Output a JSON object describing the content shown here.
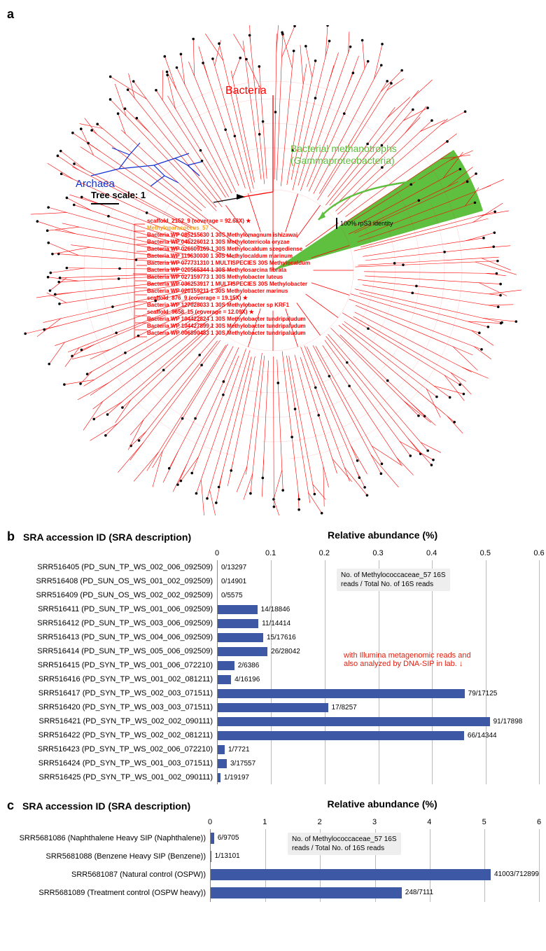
{
  "colors": {
    "bacteria": "#ff0000",
    "archaea": "#1030d0",
    "highlight_green": "#5fbf3f",
    "highlight_green_fill": "#5fbf3f",
    "bar": "#3d59a6",
    "grid": "#bbbbbb",
    "orange": "#f0a020",
    "red_note": "#e02010",
    "note_bg": "#eeeeee"
  },
  "panel_a": {
    "label": "a",
    "bacteria_label": "Bacteria",
    "archaea_label": "Archaea",
    "green_label_1": "Bacterial methanotrophs",
    "green_label_2": "(Gammaproteobacteria)",
    "tree_scale": "Tree scale: 1",
    "rps3_note": "100% rpS3 identity",
    "species": [
      {
        "text": "scaffold_2152_9 (coverage = 92.68X)",
        "color": "#ff0000",
        "star": true
      },
      {
        "text": "Methyloparacoccus_57",
        "color": "#f0a020",
        "arrow": true
      },
      {
        "text": "Bacteria WP 085215630 1 30S Methylomagnum ishizawai",
        "color": "#ff0000"
      },
      {
        "text": "Bacteria WP 045226012 1 30S Methyloterricola oryzae",
        "color": "#ff0000"
      },
      {
        "text": "Bacteria WP 026609169 1 30S Methylocaldum szegediense",
        "color": "#ff0000"
      },
      {
        "text": "Bacteria WP 119630030 1 30S Methylocaldum marinum",
        "color": "#ff0000"
      },
      {
        "text": "Bacteria WP 077731310 1 MULTISPECIES 30S Methylocaldum",
        "color": "#ff0000"
      },
      {
        "text": "Bacteria WP 020565344 1 30S Methylosarcina fibrata",
        "color": "#ff0000"
      },
      {
        "text": "Bacteria WP 027159773 1 30S Methylobacter luteus",
        "color": "#ff0000"
      },
      {
        "text": "Bacteria WP 036253917 1 MULTISPECIES 30S Methylobacter",
        "color": "#ff0000"
      },
      {
        "text": "Bacteria WP 020159211 1 30S Methylobacter marinus",
        "color": "#ff0000"
      },
      {
        "text": "scaffold_876_9 (coverage = 19.15X)",
        "color": "#ff0000",
        "star": true
      },
      {
        "text": "Bacteria WP 127028033 1 30S Methylobacter sp KRF1",
        "color": "#ff0000"
      },
      {
        "text": "scaffold_9658_15 (coverage = 12.09X)",
        "color": "#ff0000",
        "star": true
      },
      {
        "text": "Bacteria WP 104422824 1 30S Methylobacter tundripaludum",
        "color": "#ff0000"
      },
      {
        "text": "Bacteria WP 104427899 1 30S Methylobacter tundripaludum",
        "color": "#ff0000"
      },
      {
        "text": "Bacteria WP 006890483 1 30S Methylobacter tundripaludum",
        "color": "#ff0000"
      }
    ]
  },
  "panel_b": {
    "label": "b",
    "left_header": "SRA accession ID (SRA description)",
    "right_header": "Relative abundance (%)",
    "xmax": 0.6,
    "xtick_step": 0.1,
    "xticks": [
      "0",
      "0.1",
      "0.2",
      "0.3",
      "0.4",
      "0.5",
      "0.6"
    ],
    "note_box": "No. of Methylococcaceae_57 16S\nreads / Total No. of 16S reads",
    "red_note": "with Illumina metagenomic reads and\nalso analyzed by DNA-SIP in lab. ↓",
    "rows": [
      {
        "label": "SRR516405 (PD_SUN_TP_WS_002_006_092509)",
        "value": 0.0,
        "text": "0/13297"
      },
      {
        "label": "SRR516408 (PD_SUN_OS_WS_001_002_092509)",
        "value": 0.0,
        "text": "0/14901"
      },
      {
        "label": "SRR516409 (PD_SUN_OS_WS_002_002_092509)",
        "value": 0.0,
        "text": "0/5575"
      },
      {
        "label": "SRR516411 (PD_SUN_TP_WS_001_006_092509)",
        "value": 0.074,
        "text": "14/18846"
      },
      {
        "label": "SRR516412 (PD_SUN_TP_WS_003_006_092509)",
        "value": 0.076,
        "text": "11/14414"
      },
      {
        "label": "SRR516413 (PD_SUN_TP_WS_004_006_092509)",
        "value": 0.085,
        "text": "15/17616"
      },
      {
        "label": "SRR516414 (PD_SUN_TP_WS_005_006_092509)",
        "value": 0.093,
        "text": "26/28042"
      },
      {
        "label": "SRR516415 (PD_SYN_TP_WS_001_006_072210)",
        "value": 0.031,
        "text": "2/6386"
      },
      {
        "label": "SRR516416 (PD_SYN_TP_WS_001_002_081211)",
        "value": 0.025,
        "text": "4/16196"
      },
      {
        "label": "SRR516417 (PD_SYN_TP_WS_002_003_071511)",
        "value": 0.461,
        "text": "79/17125"
      },
      {
        "label": "SRR516420 (PD_SYN_TP_WS_003_003_071511)",
        "value": 0.206,
        "text": "17/8257"
      },
      {
        "label": "SRR516421 (PD_SYN_TP_WS_002_002_090111)",
        "value": 0.508,
        "text": "91/17898"
      },
      {
        "label": "SRR516422 (PD_SYN_TP_WS_002_002_081211)",
        "value": 0.46,
        "text": "66/14344"
      },
      {
        "label": "SRR516423 (PD_SYN_TP_WS_002_006_072210)",
        "value": 0.013,
        "text": "1/7721"
      },
      {
        "label": "SRR516424 (PD_SYN_TP_WS_001_003_071511)",
        "value": 0.017,
        "text": "3/17557"
      },
      {
        "label": "SRR516425 (PD_SYN_TP_WS_001_002_090111)",
        "value": 0.005,
        "text": "1/19197"
      }
    ]
  },
  "panel_c": {
    "label": "c",
    "left_header": "SRA accession ID (SRA description)",
    "right_header": "Relative abundance (%)",
    "xmax": 6,
    "xtick_step": 1,
    "xticks": [
      "0",
      "1",
      "2",
      "3",
      "4",
      "5",
      "6"
    ],
    "note_box": "No. of Methylococcaceae_57 16S\nreads / Total No. of 16S reads",
    "rows": [
      {
        "label": "SRR5681086 (Naphthalene Heavy SIP (Naphthalene))",
        "value": 0.062,
        "text": "6/9705"
      },
      {
        "label": "SRR5681088 (Benzene Heavy SIP (Benzene))",
        "value": 0.0076,
        "text": "1/13101"
      },
      {
        "label": "SRR5681087 (Natural control (OSPW))",
        "value": 5.75,
        "text": "41003/712899"
      },
      {
        "label": "SRR5681089 (Treatment control (OSPW heavy))",
        "value": 3.49,
        "text": "248/7111"
      }
    ]
  }
}
